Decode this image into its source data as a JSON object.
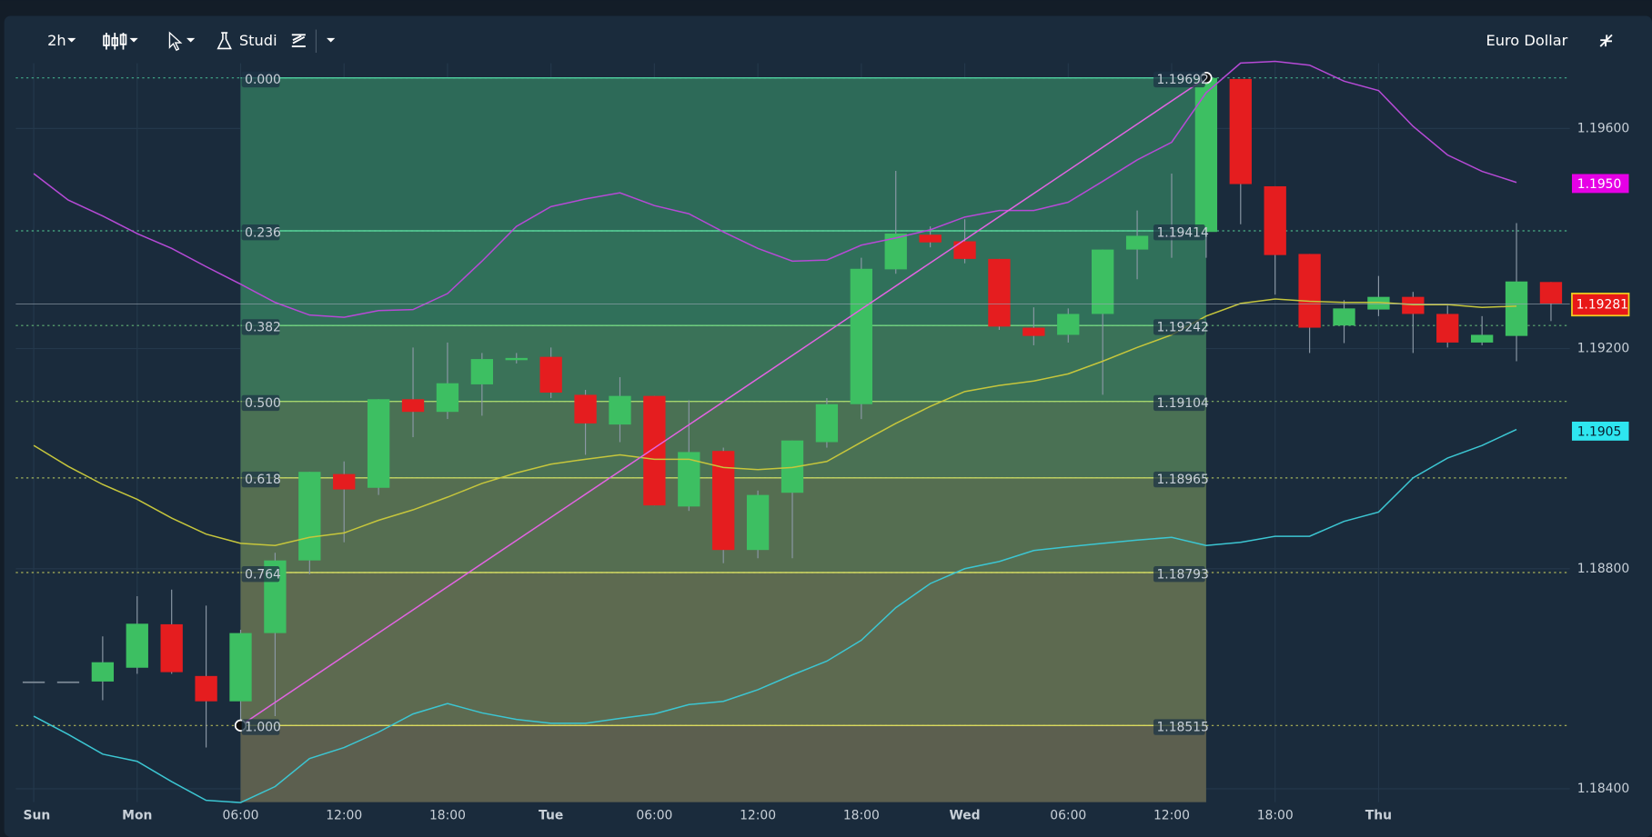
{
  "toolbar": {
    "interval": "2h",
    "studies": "Studi",
    "symbol": "Euro Dollar"
  },
  "chart_data": {
    "type": "candlestick",
    "open": [
      1.18595,
      1.18595,
      1.18595,
      1.1862,
      1.18699,
      1.18605,
      1.18559,
      1.18683,
      1.18815,
      1.18972,
      1.18947,
      1.19108,
      1.19085,
      1.19135,
      1.19179,
      1.19185,
      1.19116,
      1.19062,
      1.19114,
      1.18913,
      1.19014,
      1.18834,
      1.18938,
      1.1903,
      1.19099,
      1.19344,
      1.19407,
      1.19395,
      1.19363,
      1.19238,
      1.19225,
      1.19263,
      1.1938,
      1.19405,
      1.19412,
      1.1969,
      1.19495,
      1.19372,
      1.19242,
      1.19271,
      1.19294,
      1.19263,
      1.19211,
      1.19223,
      1.19321
    ],
    "high": [
      1.18595,
      1.18595,
      1.18677,
      1.1875,
      1.18762,
      1.18733,
      1.18689,
      1.18829,
      1.18976,
      1.18995,
      1.19108,
      1.19202,
      1.19211,
      1.19192,
      1.19192,
      1.19202,
      1.19125,
      1.19148,
      1.19114,
      1.19106,
      1.1902,
      1.18942,
      1.19033,
      1.1911,
      1.19365,
      1.19523,
      1.19422,
      1.19435,
      1.19363,
      1.19275,
      1.19273,
      1.1938,
      1.19451,
      1.19518,
      1.197,
      1.1969,
      1.19495,
      1.19372,
      1.19288,
      1.19332,
      1.19303,
      1.19278,
      1.19259,
      1.19428,
      1.19321
    ],
    "low": [
      1.18595,
      1.18595,
      1.18561,
      1.18609,
      1.18609,
      1.18475,
      1.18513,
      1.18532,
      1.1879,
      1.18848,
      1.18934,
      1.19039,
      1.19072,
      1.19078,
      1.19173,
      1.1911,
      1.19007,
      1.1903,
      1.18915,
      1.18905,
      1.1881,
      1.18819,
      1.18819,
      1.1902,
      1.19072,
      1.19336,
      1.19384,
      1.19355,
      1.19234,
      1.19206,
      1.19211,
      1.19116,
      1.19326,
      1.19365,
      1.19365,
      1.19426,
      1.19298,
      1.19192,
      1.1921,
      1.19259,
      1.19192,
      1.19202,
      1.19206,
      1.19177,
      1.1925
    ],
    "close": [
      1.18595,
      1.18595,
      1.1863,
      1.187,
      1.18612,
      1.18559,
      1.18683,
      1.18815,
      1.18976,
      1.18944,
      1.19108,
      1.19085,
      1.19137,
      1.19181,
      1.19183,
      1.1912,
      1.19064,
      1.19114,
      1.18915,
      1.19012,
      1.18834,
      1.18934,
      1.19033,
      1.19099,
      1.19345,
      1.19409,
      1.19393,
      1.19363,
      1.1924,
      1.19223,
      1.19263,
      1.1938,
      1.19405,
      1.19405,
      1.19692,
      1.19499,
      1.1937,
      1.19238,
      1.19273,
      1.19294,
      1.19263,
      1.19211,
      1.19225,
      1.19322,
      1.19282
    ],
    "up_color": "#3dbf62",
    "down_color": "#e51d1f",
    "flat_color": "#7d8a97",
    "series": [
      {
        "color": "#b64ad6",
        "values": [
          1.19518,
          1.1947,
          1.19441,
          1.19409,
          1.19382,
          1.19349,
          1.19317,
          1.19284,
          1.19261,
          1.19257,
          1.19269,
          1.19271,
          1.193,
          1.19359,
          1.19422,
          1.19458,
          1.19472,
          1.19483,
          1.1946,
          1.19445,
          1.19412,
          1.19382,
          1.19359,
          1.19361,
          1.19388,
          1.19401,
          1.19416,
          1.19439,
          1.19451,
          1.19451,
          1.19466,
          1.19504,
          1.19543,
          1.19575,
          1.19665,
          1.19719,
          1.19722,
          1.19715,
          1.19686,
          1.19669,
          1.19604,
          1.19552,
          1.19522,
          1.19502
        ]
      },
      {
        "color": "#c6c63c",
        "values": [
          1.19024,
          1.18986,
          1.18953,
          1.18926,
          1.18892,
          1.18863,
          1.18846,
          1.18842,
          1.18857,
          1.18865,
          1.18888,
          1.18907,
          1.1893,
          1.18955,
          1.18974,
          1.1899,
          1.18999,
          1.19007,
          1.18999,
          1.18999,
          1.18984,
          1.1898,
          1.18984,
          1.18995,
          1.1903,
          1.19064,
          1.19095,
          1.19122,
          1.19133,
          1.19141,
          1.19154,
          1.19177,
          1.19202,
          1.19225,
          1.19259,
          1.19282,
          1.1929,
          1.19286,
          1.19284,
          1.19284,
          1.1928,
          1.1928,
          1.19275,
          1.19277
        ]
      },
      {
        "color": "#3cc6d2",
        "values": [
          1.18532,
          1.18499,
          1.18463,
          1.1845,
          1.18413,
          1.18379,
          1.18375,
          1.18404,
          1.18455,
          1.18475,
          1.18503,
          1.18536,
          1.18555,
          1.18538,
          1.18526,
          1.18519,
          1.18519,
          1.18528,
          1.18536,
          1.18553,
          1.18559,
          1.1858,
          1.18607,
          1.18632,
          1.1867,
          1.18729,
          1.18773,
          1.188,
          1.18813,
          1.18833,
          1.1884,
          1.18846,
          1.18852,
          1.18857,
          1.18842,
          1.18848,
          1.18859,
          1.18859,
          1.18886,
          1.18903,
          1.18965,
          1.19001,
          1.19024,
          1.19053
        ]
      }
    ],
    "fib": {
      "start": 6,
      "end": 34,
      "trend_color": "#e264e2",
      "levels": [
        {
          "value": 0,
          "label": "0.000"
        },
        0.236,
        0.382,
        {
          "value": 0.5,
          "label": "0.500"
        },
        0.618,
        0.764,
        {
          "value": 1,
          "label": "1.000"
        }
      ],
      "prices": [
        1.19692,
        1.19414,
        1.19242,
        1.19104,
        1.18965,
        1.18793,
        1.18515
      ],
      "line_colors": [
        "#4fd0a0",
        "#58d49a",
        "#74d682",
        "#a4d66e",
        "#c6d864",
        "#d2d862",
        "#dada5e"
      ],
      "fill_colors": [
        "#2d6a58",
        "#30705a",
        "#3a7258",
        "#4a7154",
        "#556e51",
        "#5d6a50",
        "#5c5f4f"
      ]
    },
    "ylim": [
      1.1837,
      1.1973
    ],
    "yticks": [
      {
        "value": 1.196,
        "label": "1.19600"
      },
      {
        "value": 1.192,
        "label": "1.19200"
      },
      {
        "value": 1.188,
        "label": "1.18800"
      },
      {
        "value": 1.184,
        "label": "1.18400"
      }
    ],
    "xticks": [
      {
        "value": 0,
        "label": "Sun"
      },
      {
        "value": 3,
        "label": "Mon"
      },
      {
        "value": 6,
        "label": "06:00"
      },
      {
        "value": 9,
        "label": "12:00"
      },
      {
        "value": 12,
        "label": "18:00"
      },
      {
        "value": 15,
        "label": "Tue"
      },
      {
        "value": 18,
        "label": "06:00"
      },
      {
        "value": 21,
        "label": "12:00"
      },
      {
        "value": 24,
        "label": "18:00"
      },
      {
        "value": 27,
        "label": "Wed"
      },
      {
        "value": 30,
        "label": "06:00"
      },
      {
        "value": 33,
        "label": "12:00"
      },
      {
        "value": 36,
        "label": "18:00"
      },
      {
        "value": 39,
        "label": "Thu"
      }
    ],
    "last_price": 1.19281,
    "last_color": "#e81818",
    "band_badges": [
      {
        "value": 1.195,
        "label": "1.1950",
        "color": "#e600e6"
      },
      {
        "value": 1.1905,
        "label": "1.1905",
        "color": "#2ee6f0"
      }
    ]
  }
}
